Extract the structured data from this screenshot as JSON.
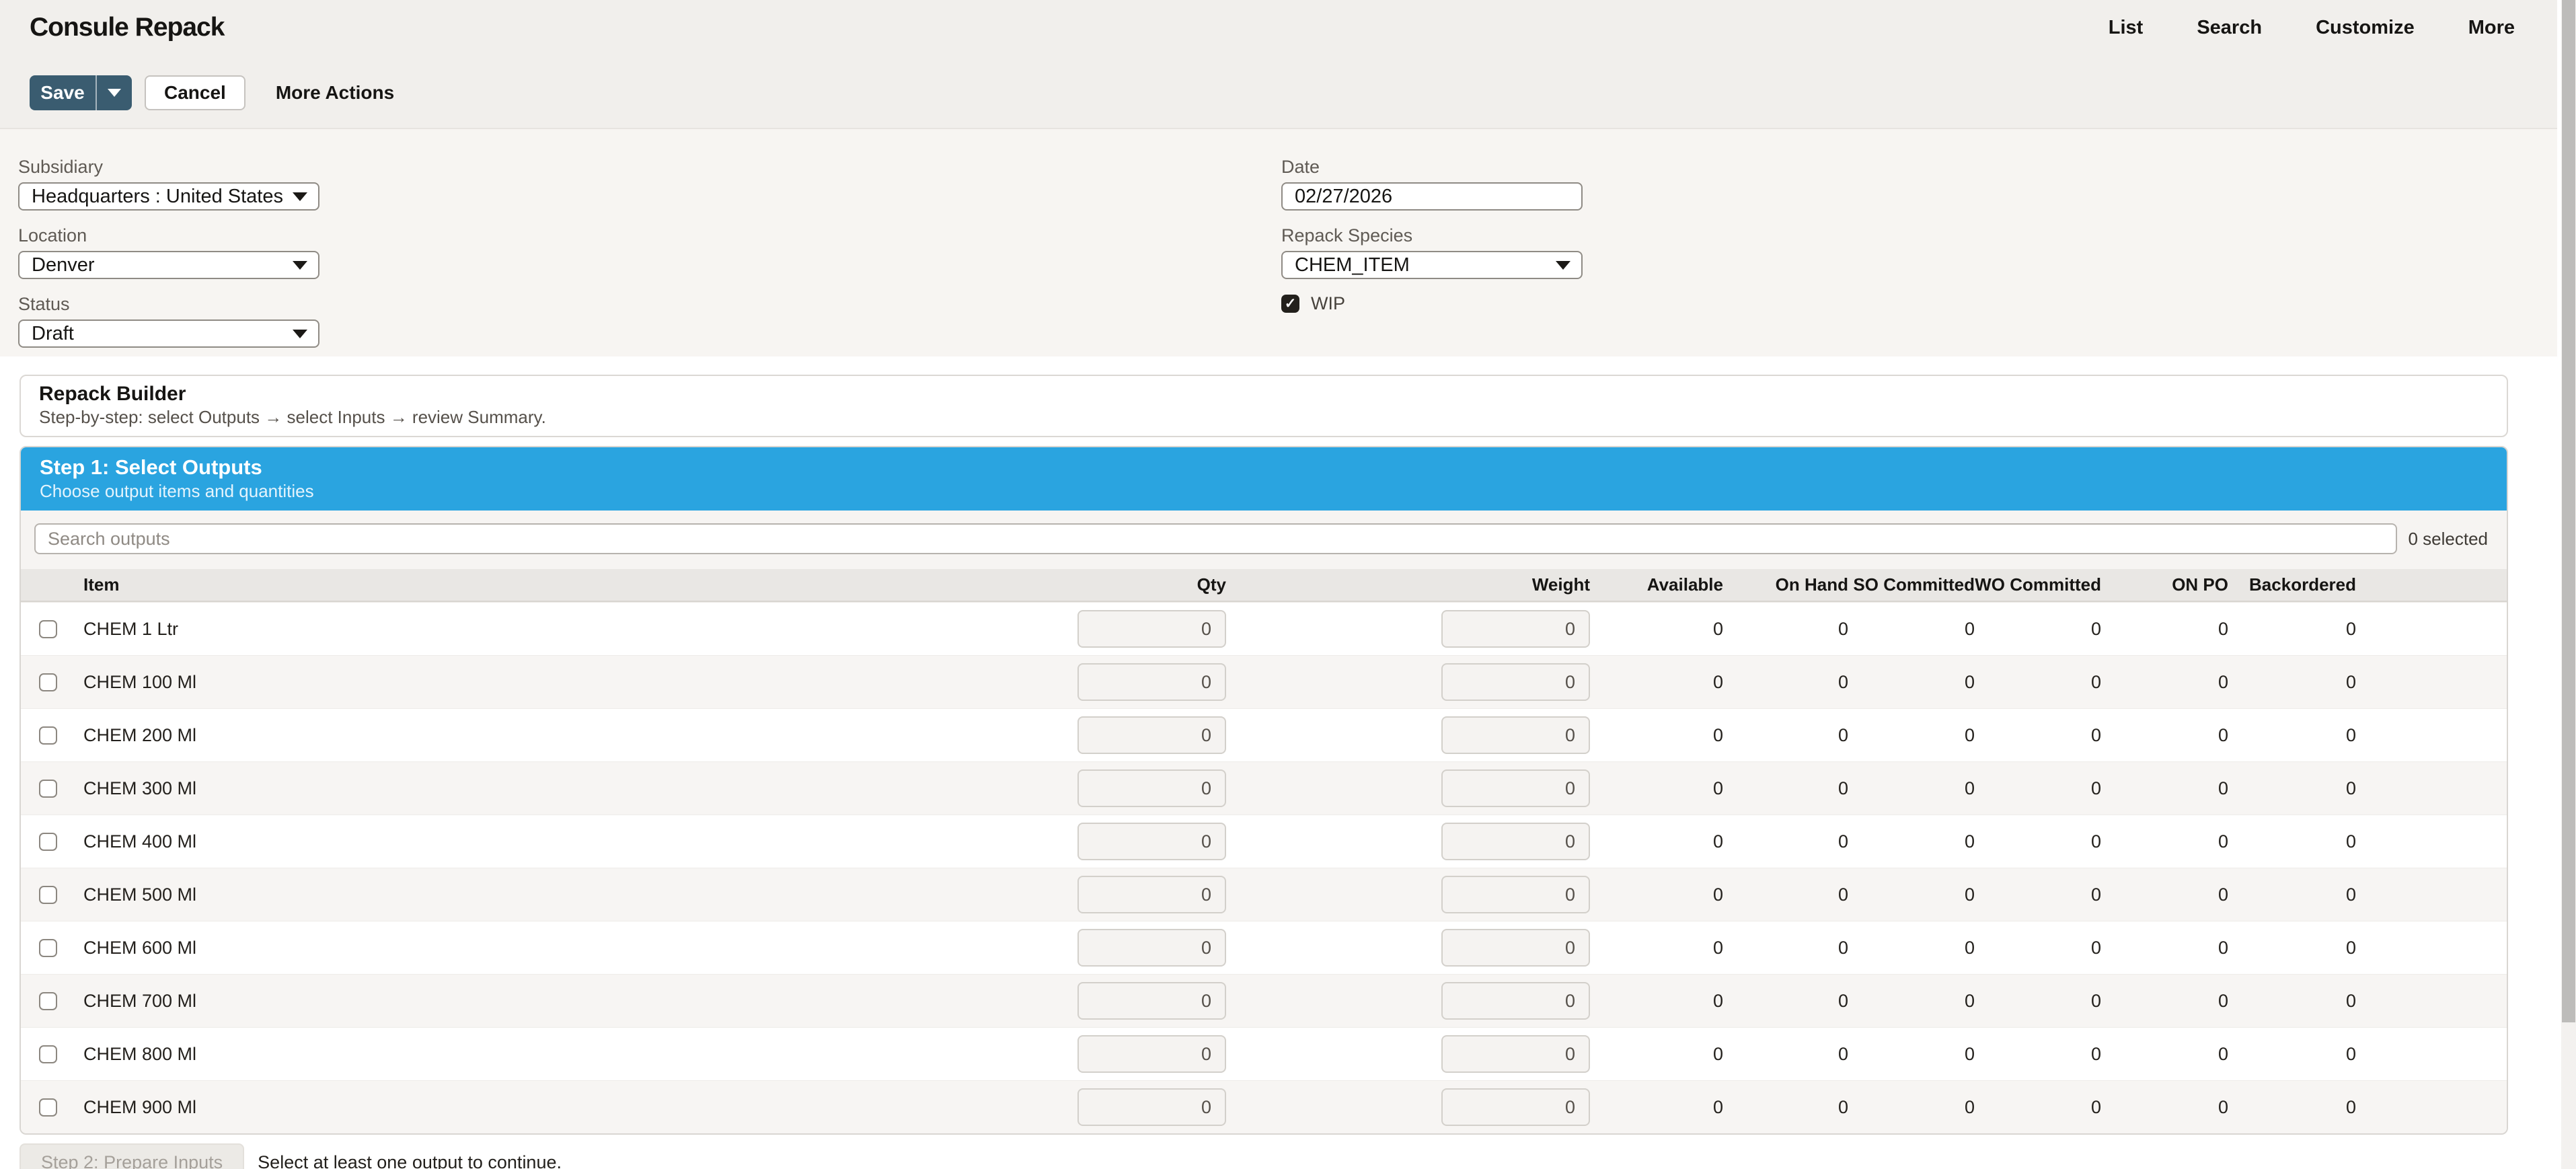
{
  "header": {
    "title": "Consule Repack",
    "links": [
      {
        "label": "List"
      },
      {
        "label": "Search"
      },
      {
        "label": "Customize"
      },
      {
        "label": "More"
      }
    ]
  },
  "actions": {
    "save_label": "Save",
    "cancel_label": "Cancel",
    "more_actions_label": "More Actions"
  },
  "form": {
    "subsidiary": {
      "label": "Subsidiary",
      "value": "Headquarters : United States"
    },
    "location": {
      "label": "Location",
      "value": "Denver"
    },
    "status": {
      "label": "Status",
      "value": "Draft"
    },
    "date": {
      "label": "Date",
      "value": "02/27/2026"
    },
    "repack_species": {
      "label": "Repack Species",
      "value": "CHEM_ITEM"
    },
    "wip": {
      "label": "WIP",
      "checked": true
    }
  },
  "builder": {
    "title": "Repack Builder",
    "subtitle": "Step-by-step: select Outputs → select Inputs → review Summary."
  },
  "step1": {
    "title": "Step 1: Select Outputs",
    "subtitle": "Choose output items and quantities",
    "search_placeholder": "Search outputs",
    "selected_count_label": "0 selected"
  },
  "table": {
    "columns": [
      "Item",
      "Qty",
      "Weight",
      "Available",
      "On Hand",
      "SO Committed",
      "WO Committed",
      "ON PO",
      "Backordered"
    ],
    "rows": [
      {
        "item": "CHEM 1 Ltr",
        "qty": "0",
        "weight": "0",
        "available": "0",
        "on_hand": "0",
        "so_committed": "0",
        "wo_committed": "0",
        "on_po": "0",
        "backordered": "0"
      },
      {
        "item": "CHEM 100 Ml",
        "qty": "0",
        "weight": "0",
        "available": "0",
        "on_hand": "0",
        "so_committed": "0",
        "wo_committed": "0",
        "on_po": "0",
        "backordered": "0"
      },
      {
        "item": "CHEM 200 Ml",
        "qty": "0",
        "weight": "0",
        "available": "0",
        "on_hand": "0",
        "so_committed": "0",
        "wo_committed": "0",
        "on_po": "0",
        "backordered": "0"
      },
      {
        "item": "CHEM 300 Ml",
        "qty": "0",
        "weight": "0",
        "available": "0",
        "on_hand": "0",
        "so_committed": "0",
        "wo_committed": "0",
        "on_po": "0",
        "backordered": "0"
      },
      {
        "item": "CHEM 400 Ml",
        "qty": "0",
        "weight": "0",
        "available": "0",
        "on_hand": "0",
        "so_committed": "0",
        "wo_committed": "0",
        "on_po": "0",
        "backordered": "0"
      },
      {
        "item": "CHEM 500 Ml",
        "qty": "0",
        "weight": "0",
        "available": "0",
        "on_hand": "0",
        "so_committed": "0",
        "wo_committed": "0",
        "on_po": "0",
        "backordered": "0"
      },
      {
        "item": "CHEM 600 Ml",
        "qty": "0",
        "weight": "0",
        "available": "0",
        "on_hand": "0",
        "so_committed": "0",
        "wo_committed": "0",
        "on_po": "0",
        "backordered": "0"
      },
      {
        "item": "CHEM 700 Ml",
        "qty": "0",
        "weight": "0",
        "available": "0",
        "on_hand": "0",
        "so_committed": "0",
        "wo_committed": "0",
        "on_po": "0",
        "backordered": "0"
      },
      {
        "item": "CHEM 800 Ml",
        "qty": "0",
        "weight": "0",
        "available": "0",
        "on_hand": "0",
        "so_committed": "0",
        "wo_committed": "0",
        "on_po": "0",
        "backordered": "0"
      },
      {
        "item": "CHEM 900 Ml",
        "qty": "0",
        "weight": "0",
        "available": "0",
        "on_hand": "0",
        "so_committed": "0",
        "wo_committed": "0",
        "on_po": "0",
        "backordered": "0"
      }
    ]
  },
  "footer": {
    "step2_label": "Step 2: Prepare Inputs",
    "hint": "Select at least one output to continue."
  },
  "colors": {
    "accent_blue": "#2aa4e0",
    "save_button": "#3a5c70"
  }
}
